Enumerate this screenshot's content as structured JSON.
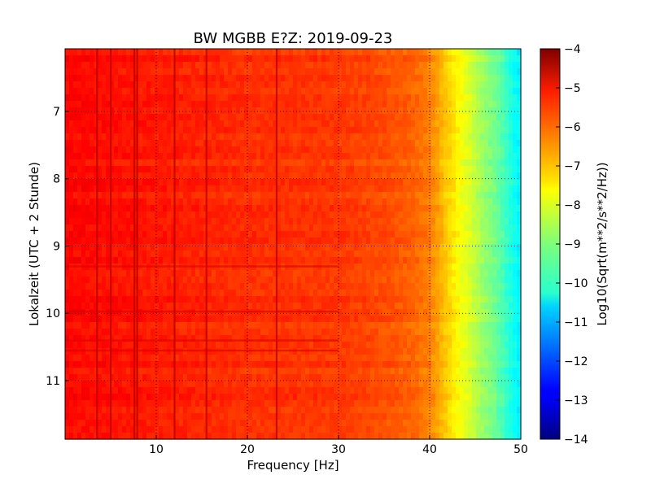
{
  "chart_data": {
    "type": "heatmap",
    "title": "BW MGBB E?Z: 2019-09-23",
    "xlabel": "Frequency [Hz]",
    "ylabel": "Lokalzeit (UTC + 2 Stunde)",
    "colorbar_label": "Log10(Sqrt(m**2/s**2/Hz))",
    "colormap": "jet",
    "xlim": [
      0,
      50
    ],
    "ylim": [
      11.87,
      6.07
    ],
    "clim": [
      -14,
      -4
    ],
    "x_ticks": [
      10,
      20,
      30,
      40,
      50
    ],
    "x_tick_labels": [
      "10",
      "20",
      "30",
      "40",
      "50"
    ],
    "y_ticks": [
      7,
      8,
      9,
      10,
      11
    ],
    "y_tick_labels": [
      "7",
      "8",
      "9",
      "10",
      "11"
    ],
    "cbar_ticks": [
      -4,
      -5,
      -6,
      -7,
      -8,
      -9,
      -10,
      -11,
      -12,
      -13,
      -14
    ],
    "cbar_tick_labels": [
      "−4",
      "−5",
      "−6",
      "−7",
      "−8",
      "−9",
      "−10",
      "−11",
      "−12",
      "−13",
      "−14"
    ],
    "grid": true,
    "spectrum_profile": {
      "frequency_hz": [
        0,
        5,
        10,
        20,
        30,
        35,
        38,
        40,
        41,
        42,
        43,
        44,
        45,
        46,
        47,
        48,
        49,
        50
      ],
      "log10_amplitude": [
        -5.3,
        -5.4,
        -5.5,
        -5.7,
        -5.8,
        -6.0,
        -6.2,
        -6.5,
        -6.9,
        -7.3,
        -7.7,
        -8.0,
        -8.4,
        -8.8,
        -9.1,
        -9.5,
        -10.0,
        -10.4
      ]
    },
    "spectral_lines_hz": [
      3.5,
      5,
      7.6,
      7.9,
      12,
      15.5,
      23.2
    ],
    "time_lines_hours": [
      9.3,
      9.97,
      10.4,
      10.55
    ]
  }
}
